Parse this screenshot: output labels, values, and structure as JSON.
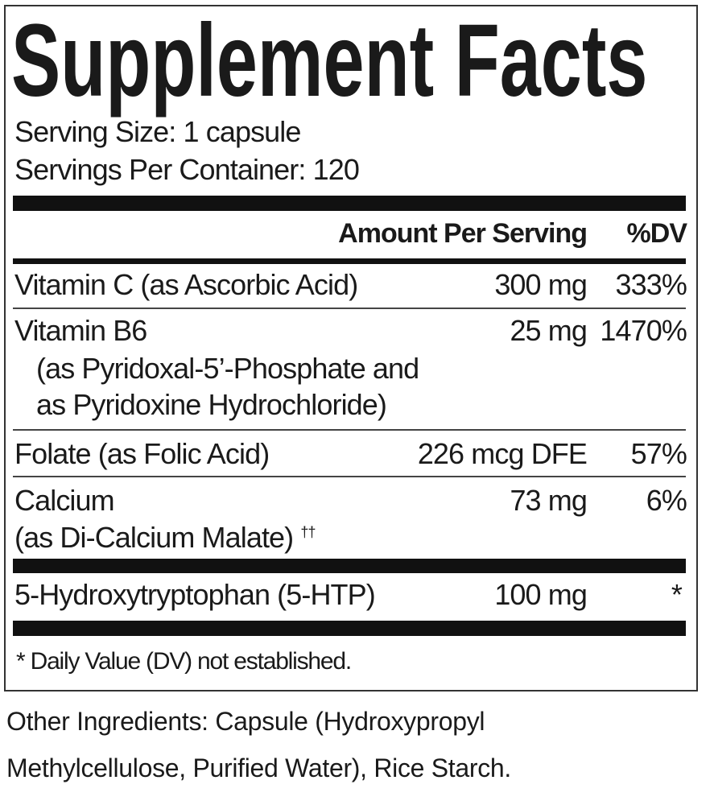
{
  "title": "Supplement Facts",
  "serving_size": "Serving Size: 1 capsule",
  "servings_per_container": "Servings Per Container: 120",
  "header": {
    "amount": "Amount Per Serving",
    "dv": "%DV"
  },
  "rows": [
    {
      "name": "Vitamin C (as Ascorbic Acid)",
      "amount": "300 mg",
      "dv": "333%"
    },
    {
      "name": "Vitamin B6",
      "detail1": "(as Pyridoxal-5’-Phosphate and",
      "detail2": "as Pyridoxine Hydrochloride)",
      "amount": "25 mg",
      "dv": "1470%"
    },
    {
      "name": "Folate (as Folic Acid)",
      "amount": "226 mcg DFE",
      "dv": "57%"
    },
    {
      "name": "Calcium",
      "detail1": "(as Di-Calcium Malate)",
      "mark": "††",
      "amount": "73 mg",
      "dv": "6%"
    },
    {
      "name": "5-Hydroxytryptophan (5-HTP)",
      "amount": "100 mg",
      "dv": "*"
    }
  ],
  "footnote": "* Daily Value (DV) not established.",
  "other_ingredients": {
    "line1": "Other Ingredients: Capsule (Hydroxypropyl",
    "line2": "Methylcellulose, Purified Water), Rice Starch."
  }
}
